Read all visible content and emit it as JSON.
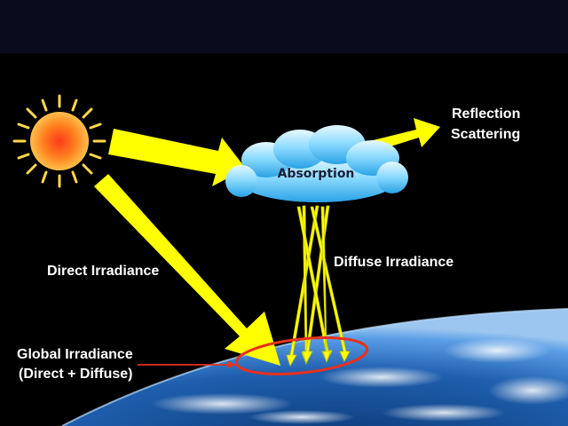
{
  "labels": {
    "reflection": "Reflection",
    "scattering": "Scattering",
    "absorption": "Absorption",
    "direct_irradiance": "Direct Irradiance",
    "diffuse_irradiance": "Diffuse Irradiance",
    "global_irradiance_line1": "Global Irradiance",
    "global_irradiance_line2": "(Direct + Diffuse)"
  },
  "colors": {
    "background": "#000000",
    "top_band": "#0a0b1d",
    "arrow_yellow": "#ffff00",
    "sun_orange": "#ff7a1a",
    "sun_ray": "#ffd84a",
    "cloud": "#5ec8f2",
    "highlight_ellipse": "#e8301e",
    "earth_blue": "#2d74c4"
  },
  "icons": {
    "sun": "sun-icon",
    "cloud": "cloud-icon",
    "earth": "earth-image"
  }
}
